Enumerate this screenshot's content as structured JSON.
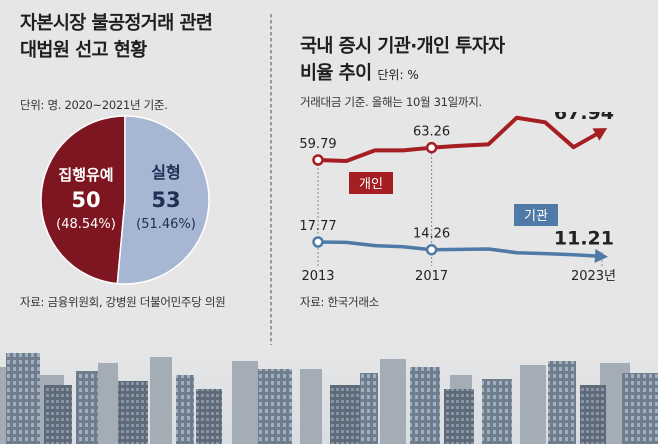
{
  "left_panel": {
    "title_line1": "자본시장 불공정거래 관련",
    "title_line2": "대법원 선고 현황",
    "unit_note": "단위: 명. 2020~2021년 기준.",
    "source": "자료: 금융위원회, 강병원 더불어민주당 의원"
  },
  "right_panel": {
    "title_line1": "국내 증시 기관·개인 투자자",
    "title_line2": "비율 추이",
    "unit": "단위: %",
    "note": "거래대금 기준. 올해는 10월 31일까지.",
    "source": "자료: 한국거래소"
  },
  "chart_data": [
    {
      "type": "pie",
      "title": "자본시장 불공정거래 관련 대법원 선고 현황",
      "unit": "명",
      "slices": [
        {
          "label": "집행유예",
          "value": 50,
          "percent": "(48.54%)",
          "color": "#7e1622"
        },
        {
          "label": "실형",
          "value": 53,
          "percent": "(51.46%)",
          "color": "#a7b6d2"
        }
      ]
    },
    {
      "type": "line",
      "title": "국내 증시 기관·개인 투자자 비율 추이",
      "unit": "%",
      "x": [
        2013,
        2014,
        2015,
        2016,
        2017,
        2018,
        2019,
        2020,
        2021,
        2022,
        2023
      ],
      "tick_labels": [
        "2013",
        "2017",
        "2023년"
      ],
      "tick_x": [
        2013,
        2017,
        2023
      ],
      "series": [
        {
          "name": "개인",
          "color": "#a41e22",
          "values": [
            59.79,
            59.5,
            62.5,
            62.5,
            63.26,
            63.8,
            64.2,
            71.7,
            70.4,
            63.4,
            67.94
          ],
          "labels": [
            {
              "x": 2013,
              "text": "59.79"
            },
            {
              "x": 2017,
              "text": "63.26"
            },
            {
              "x": 2023,
              "text": "67.94"
            }
          ]
        },
        {
          "name": "기관",
          "color": "#4f79a7",
          "values": [
            17.77,
            17.6,
            16.1,
            15.6,
            14.26,
            14.4,
            14.6,
            12.9,
            12.5,
            12.0,
            11.21
          ],
          "labels": [
            {
              "x": 2013,
              "text": "17.77"
            },
            {
              "x": 2017,
              "text": "14.26"
            },
            {
              "x": 2023,
              "text": "11.21"
            }
          ]
        }
      ]
    }
  ]
}
